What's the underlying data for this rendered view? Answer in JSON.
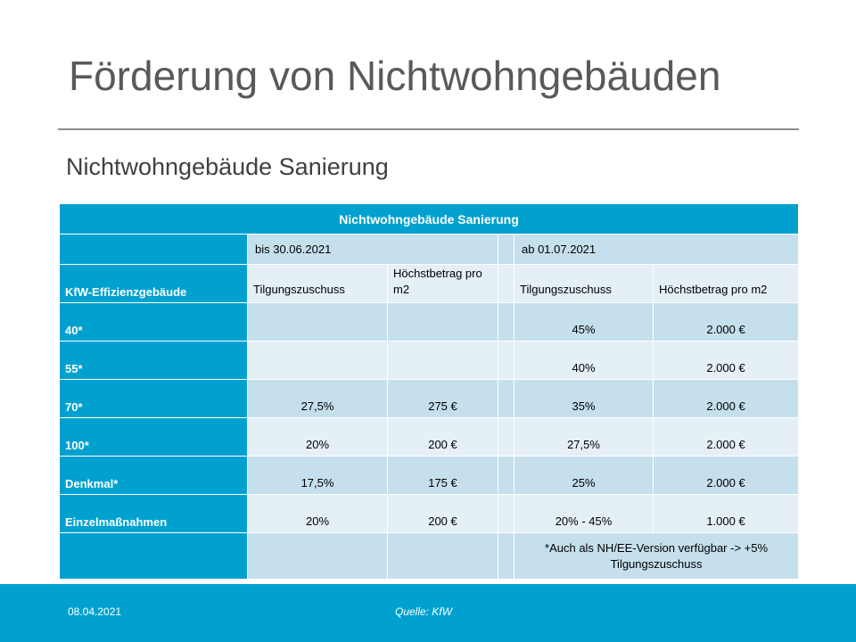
{
  "slide": {
    "title": "Förderung von Nichtwohngebäuden",
    "subtitle": "Nichtwohngebäude Sanierung"
  },
  "table": {
    "header": "Nichtwohngebäude Sanierung",
    "period_1": "bis 30.06.2021",
    "period_2": "ab 01.07.2021",
    "col_label": "KfW-Effizienzgebäude",
    "col_tilgung_1": "Tilgungszuschuss",
    "col_max_1": "Höchstbetrag pro m2",
    "col_tilgung_2": "Tilgungszuschuss",
    "col_max_2": "Höchstbetrag pro m2",
    "rows": [
      {
        "label": "40*",
        "t1": "",
        "m1": "",
        "t2": "45%",
        "m2": "2.000 €"
      },
      {
        "label": "55*",
        "t1": "",
        "m1": "",
        "t2": "40%",
        "m2": "2.000 €"
      },
      {
        "label": "70*",
        "t1": "27,5%",
        "m1": "275 €",
        "t2": "35%",
        "m2": "2.000 €"
      },
      {
        "label": "100*",
        "t1": "20%",
        "m1": "200 €",
        "t2": "27,5%",
        "m2": "2.000 €"
      },
      {
        "label": "Denkmal*",
        "t1": "17,5%",
        "m1": "175 €",
        "t2": "25%",
        "m2": "2.000 €"
      },
      {
        "label": "Einzelmaßnahmen",
        "t1": "20%",
        "m1": "200 €",
        "t2": "20% - 45%",
        "m2": "1.000 €"
      }
    ],
    "footnote": "*Auch als NH/EE-Version verfügbar -> +5% Tilgungszuschuss"
  },
  "footer": {
    "date": "08.04.2021",
    "source": "Quelle: KfW"
  },
  "colors": {
    "accent": "#00a1cf",
    "cell_dark": "#c5dfec",
    "cell_light": "#e4eff6",
    "title_text": "#595959"
  }
}
